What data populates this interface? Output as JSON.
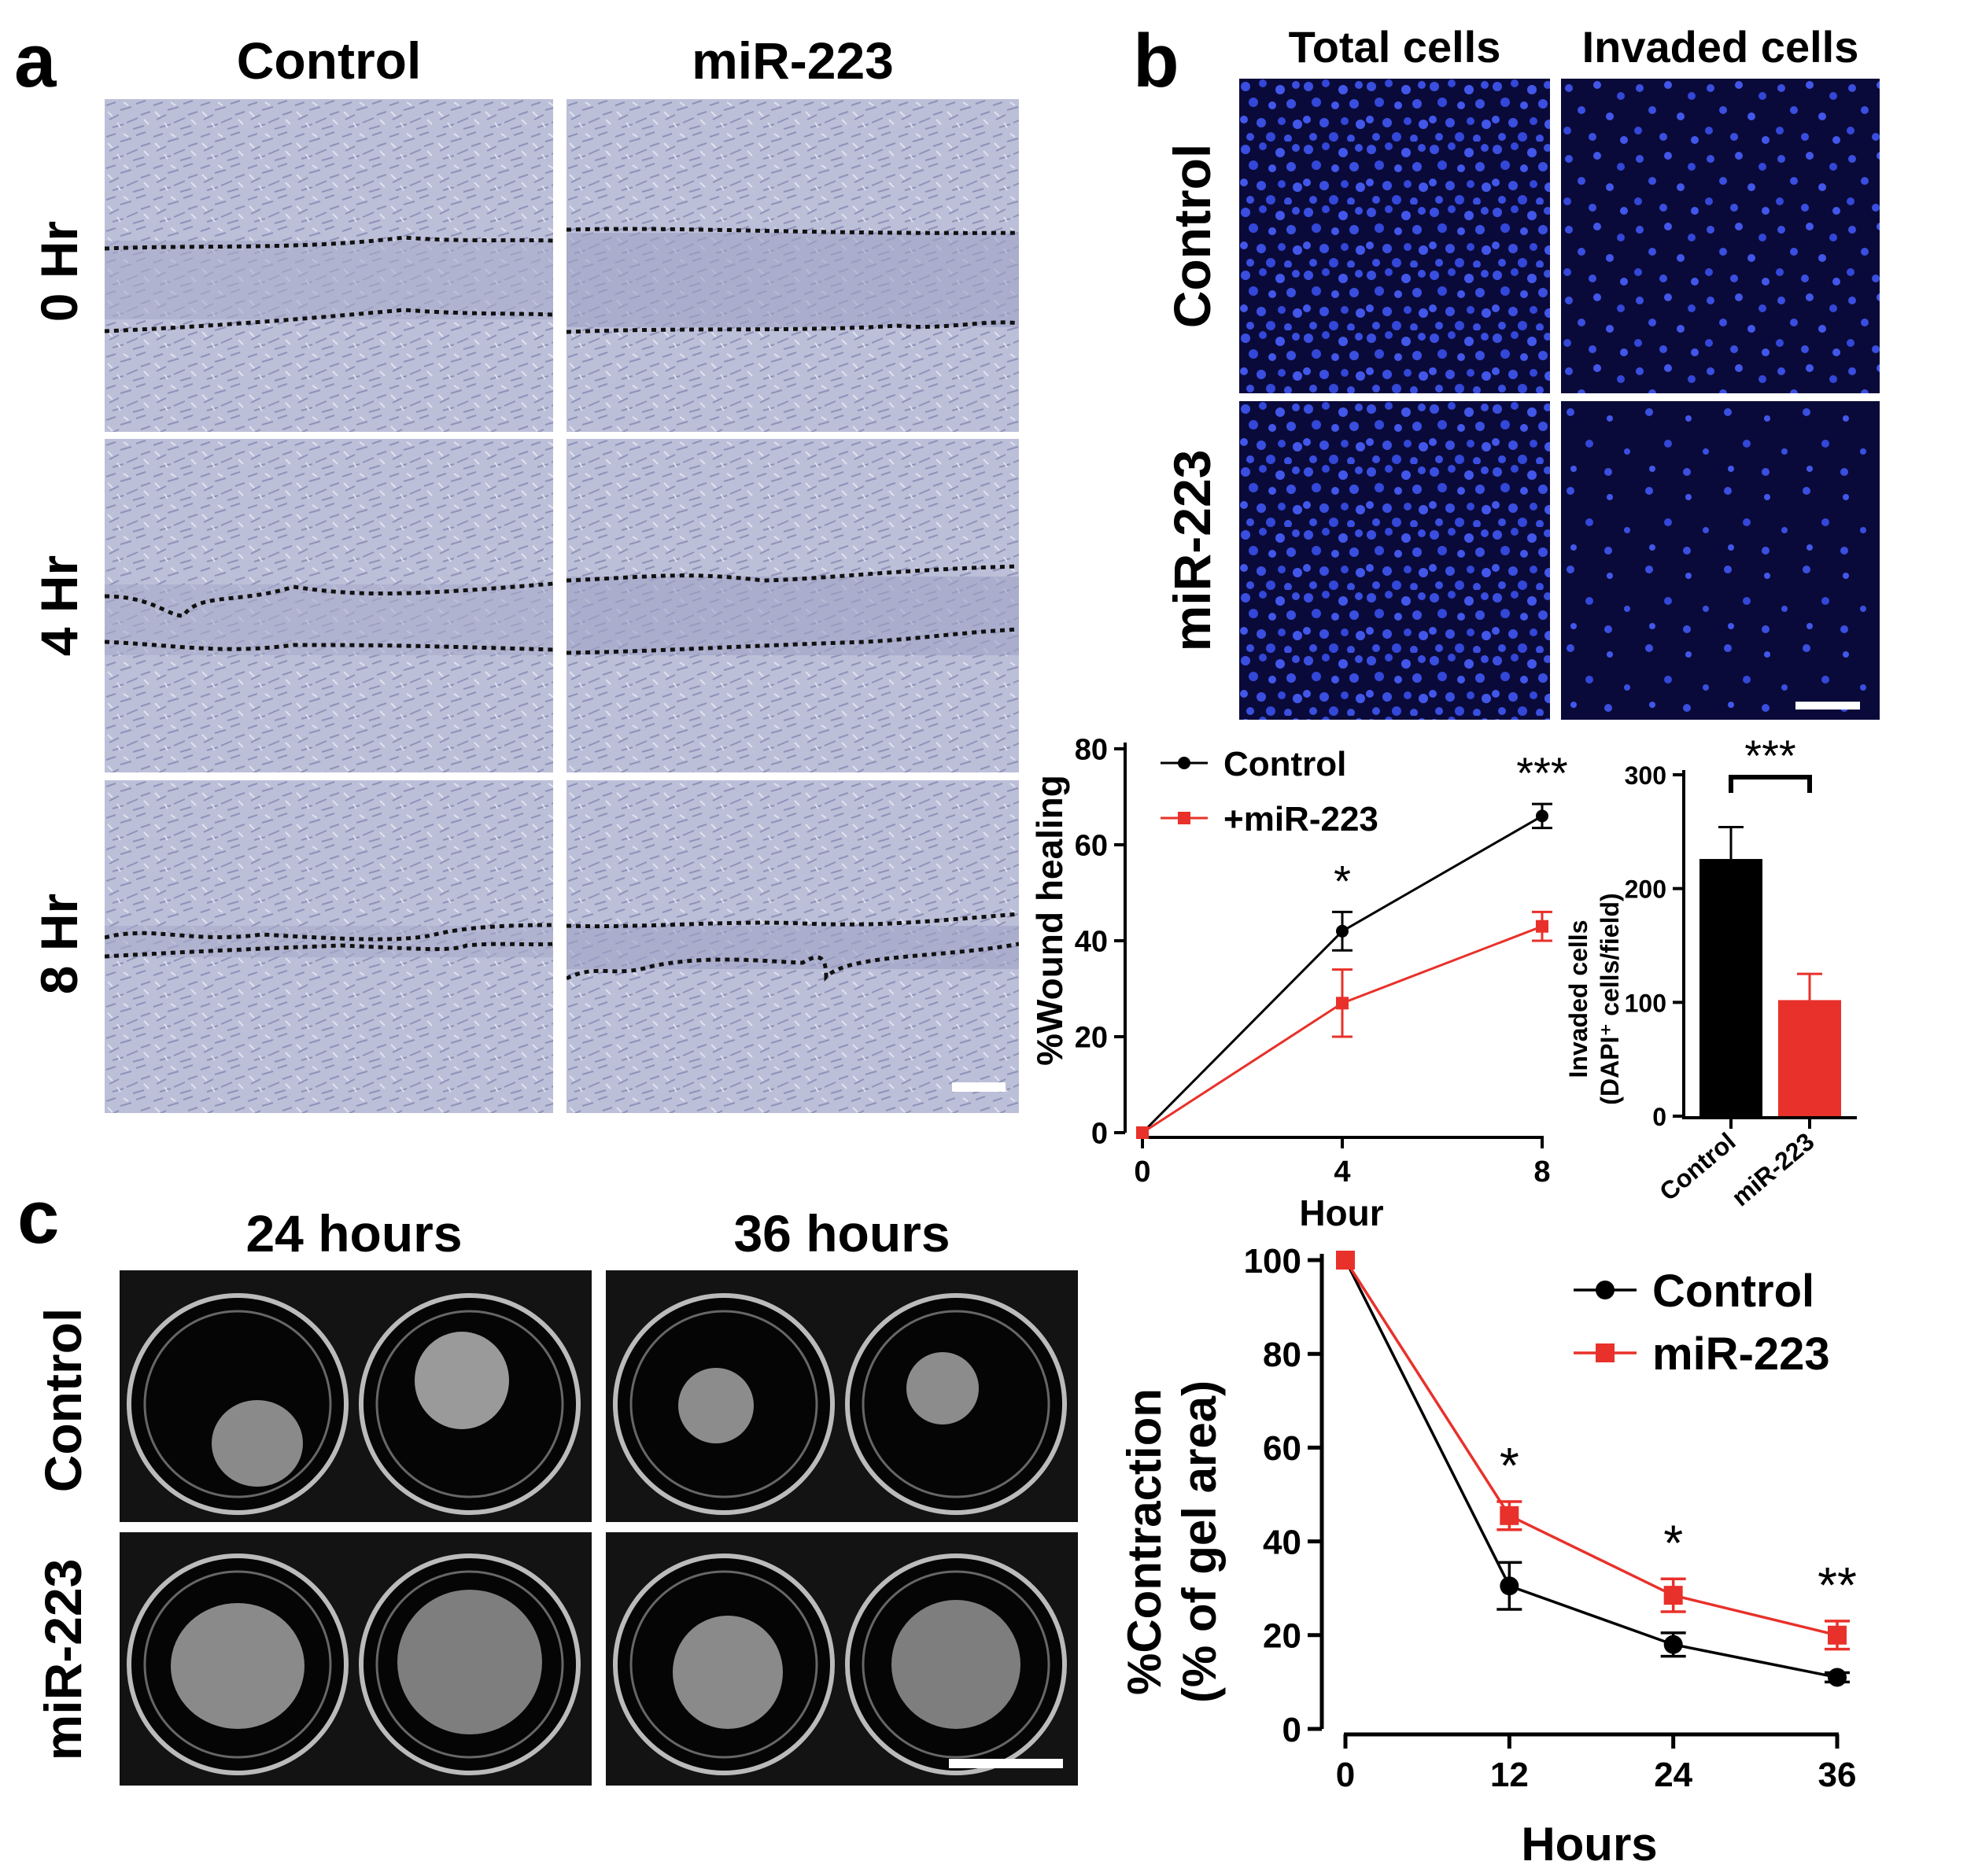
{
  "panel_a": {
    "label": "a",
    "col_headers": [
      "Control",
      "miR-223"
    ],
    "row_labels": [
      "0 Hr",
      "4 Hr",
      "8 Hr"
    ]
  },
  "panel_b": {
    "label": "b",
    "col_headers": [
      "Total cells",
      "Invaded cells"
    ],
    "row_labels": [
      "Control",
      "miR-223"
    ]
  },
  "panel_c": {
    "label": "c",
    "col_headers": [
      "24 hours",
      "36 hours"
    ],
    "row_labels": [
      "Control",
      "miR-223"
    ]
  },
  "colors": {
    "control": "#000000",
    "treatment": "#e8312a",
    "fluor_bg": "#0a0a3a",
    "nucleus": "#3a4fe0",
    "brightfield": "#bcbfd8"
  },
  "chart_data": [
    {
      "type": "line",
      "ylabel": "%Wound healing",
      "xlabel": "Hour",
      "x": [
        0,
        4,
        8
      ],
      "xticks": [
        "0",
        "4",
        "8"
      ],
      "yticks": [
        "0",
        "20",
        "40",
        "60",
        "80"
      ],
      "xlim": [
        0,
        8
      ],
      "ylim": [
        0,
        80
      ],
      "legend_position": "top-left",
      "series": [
        {
          "name": "Control",
          "values": [
            0,
            42,
            66
          ],
          "errors": [
            0,
            4,
            2.5
          ],
          "color": "#000000",
          "marker": "circle"
        },
        {
          "name": "+miR-223",
          "values": [
            0,
            27,
            43
          ],
          "errors": [
            0,
            7,
            3
          ],
          "color": "#e8312a",
          "marker": "square"
        }
      ],
      "annotations": [
        {
          "x": 4,
          "text": "*"
        },
        {
          "x": 8,
          "text": "***"
        }
      ]
    },
    {
      "type": "bar",
      "ylabel": "Invaded cells\n(DAPI⁺ cells/field)",
      "categories": [
        "Control",
        "miR-223"
      ],
      "values": [
        226,
        102
      ],
      "errors": [
        28,
        23
      ],
      "colors": [
        "#000000",
        "#e8312a"
      ],
      "yticks": [
        "0",
        "100",
        "200",
        "300"
      ],
      "ylim": [
        0,
        300
      ],
      "annotations": [
        {
          "text": "***"
        }
      ]
    },
    {
      "type": "line",
      "ylabel": "%Contraction\n(% of gel area)",
      "xlabel": "Hours",
      "x": [
        0,
        12,
        24,
        36
      ],
      "xticks": [
        "0",
        "12",
        "24",
        "36"
      ],
      "yticks": [
        "0",
        "20",
        "40",
        "60",
        "80",
        "100"
      ],
      "xlim": [
        0,
        36
      ],
      "ylim": [
        0,
        100
      ],
      "legend_position": "top-right",
      "series": [
        {
          "name": "Control",
          "values": [
            100,
            30.5,
            18,
            11
          ],
          "errors": [
            0,
            5,
            2.5,
            1
          ],
          "color": "#000000",
          "marker": "circle"
        },
        {
          "name": "miR-223",
          "values": [
            100,
            45.5,
            28.5,
            20
          ],
          "errors": [
            0,
            3,
            3.5,
            3
          ],
          "color": "#e8312a",
          "marker": "square"
        }
      ],
      "annotations": [
        {
          "x": 12,
          "text": "*"
        },
        {
          "x": 24,
          "text": "*"
        },
        {
          "x": 36,
          "text": "**"
        }
      ]
    }
  ]
}
